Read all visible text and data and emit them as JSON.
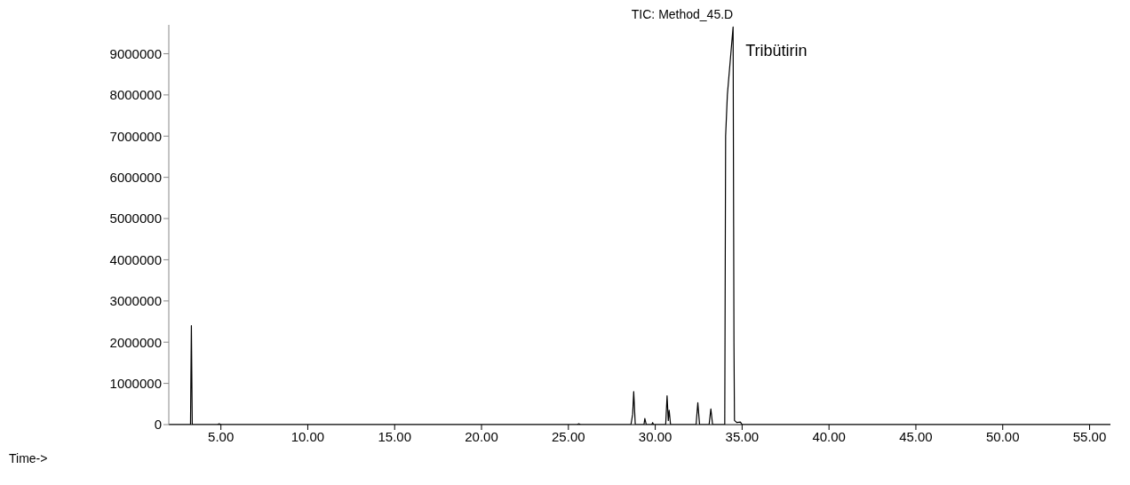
{
  "chart_data": {
    "type": "line",
    "title": "TIC: Method_45.D",
    "x": [
      2.0,
      3.25,
      3.3,
      3.35,
      4.8,
      4.9,
      5.0,
      25.5,
      25.6,
      25.7,
      28.6,
      28.7,
      28.76,
      28.85,
      29.35,
      29.4,
      29.48,
      29.8,
      29.85,
      29.9,
      30.6,
      30.68,
      30.75,
      30.8,
      30.88,
      32.35,
      32.45,
      32.55,
      33.1,
      33.2,
      33.3,
      34.0,
      34.05,
      34.15,
      34.35,
      34.48,
      34.53,
      34.56,
      34.7,
      34.9,
      35.0,
      56.2
    ],
    "series": [
      {
        "color": "#000000",
        "values": [
          0,
          0,
          2400000,
          0,
          0,
          20000,
          0,
          0,
          20000,
          0,
          0,
          250000,
          800000,
          0,
          0,
          150000,
          0,
          0,
          50000,
          0,
          0,
          700000,
          100000,
          350000,
          0,
          0,
          530000,
          0,
          0,
          380000,
          0,
          0,
          7000000,
          8000000,
          9000000,
          9650000,
          2000000,
          100000,
          50000,
          60000,
          0,
          0
        ]
      }
    ],
    "xlim": [
      2.0,
      56.2
    ],
    "xticks": [
      {
        "value": 5,
        "label": "5.00"
      },
      {
        "value": 10,
        "label": "10.00"
      },
      {
        "value": 15,
        "label": "15.00"
      },
      {
        "value": 20,
        "label": "20.00"
      },
      {
        "value": 25,
        "label": "25.00"
      },
      {
        "value": 30,
        "label": "30.00"
      },
      {
        "value": 35,
        "label": "35.00"
      },
      {
        "value": 40,
        "label": "40.00"
      },
      {
        "value": 45,
        "label": "45.00"
      },
      {
        "value": 50,
        "label": "50.00"
      },
      {
        "value": 55,
        "label": "55.00"
      }
    ],
    "ylim": [
      0,
      9700000
    ],
    "yticks": [
      0,
      1000000,
      2000000,
      3000000,
      4000000,
      5000000,
      6000000,
      7000000,
      8000000,
      9000000
    ],
    "annotations": [
      {
        "text": "Tribütirin",
        "x": 34.48,
        "y": 9650000
      },
      "Time->"
    ],
    "grid": false,
    "legend": false,
    "marker": "none",
    "line_style": "solid"
  }
}
